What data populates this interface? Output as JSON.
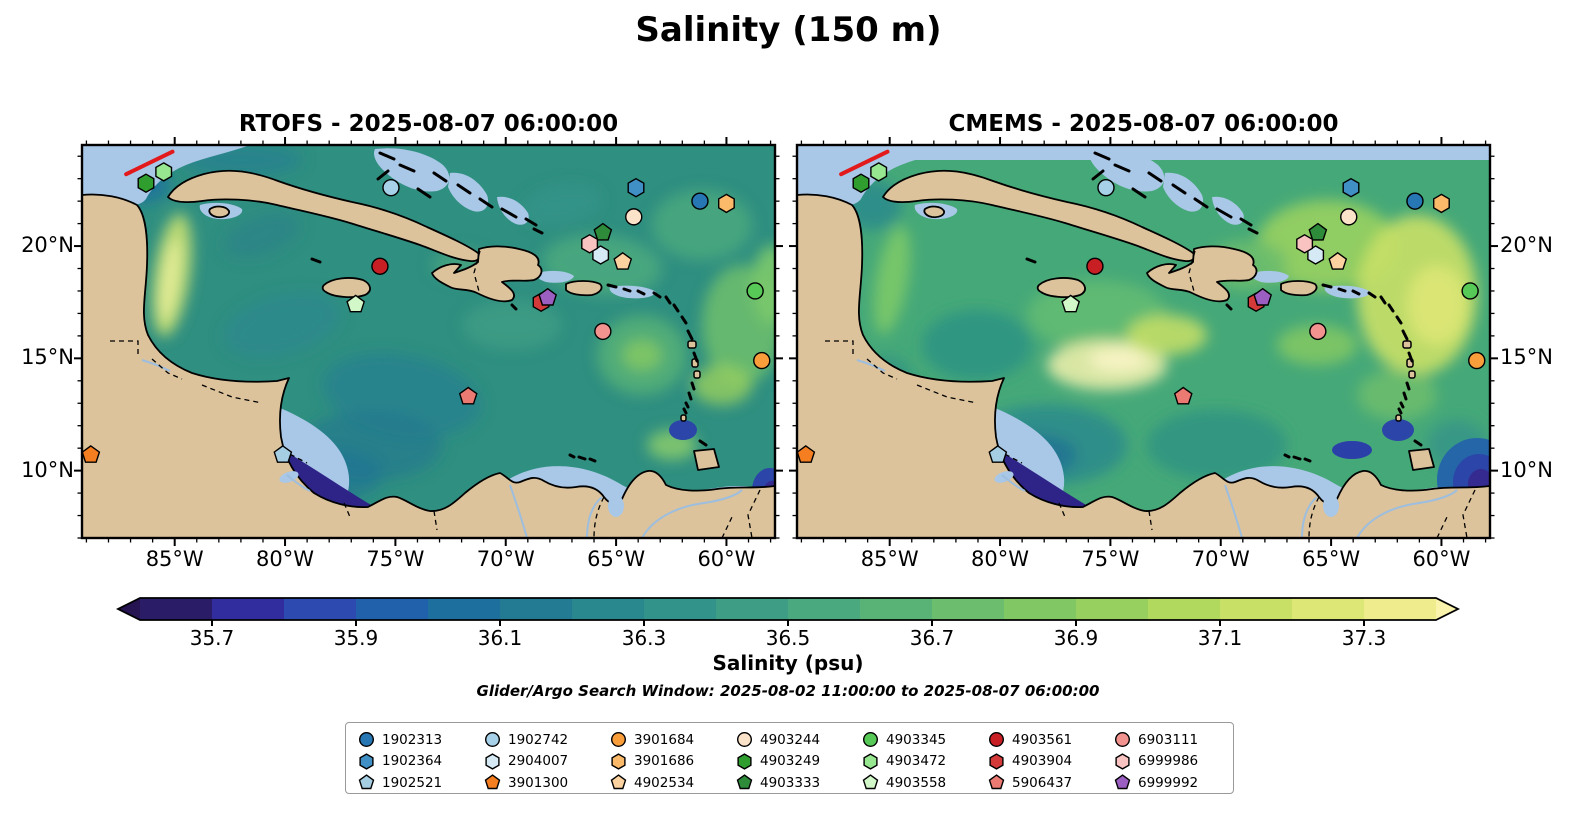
{
  "figure_title": "Salinity (150 m)",
  "panels": [
    {
      "name": "RTOFS",
      "title": "RTOFS - 2025-08-07 06:00:00"
    },
    {
      "name": "CMEMS",
      "title": "CMEMS - 2025-08-07 06:00:00"
    }
  ],
  "axes": {
    "lon_tick_labels": [
      "85°W",
      "80°W",
      "75°W",
      "70°W",
      "65°W",
      "60°W"
    ],
    "lon_tick_values": [
      -85,
      -80,
      -75,
      -70,
      -65,
      -60
    ],
    "lat_tick_labels": [
      "20°N",
      "15°N",
      "10°N"
    ],
    "lat_tick_values": [
      20,
      15,
      10
    ],
    "lon_range": [
      -89.2,
      -57.8
    ],
    "lat_range": [
      7.0,
      24.5
    ],
    "minor_tick_step_deg": 1
  },
  "colorbar": {
    "label": "Salinity (psu)",
    "tick_labels": [
      "35.7",
      "35.9",
      "36.1",
      "36.3",
      "36.5",
      "36.7",
      "36.9",
      "37.1",
      "37.3"
    ],
    "tick_values": [
      35.7,
      35.9,
      36.1,
      36.3,
      36.5,
      36.7,
      36.9,
      37.1,
      37.3
    ],
    "vmin": 35.6,
    "vmax": 37.4,
    "level_step": 0.1,
    "segment_colors": [
      "#2b1c68",
      "#322d9e",
      "#2c4ab0",
      "#2160aa",
      "#1d6f9d",
      "#227b93",
      "#29878e",
      "#32938a",
      "#3d9e85",
      "#4aa97e",
      "#59b376",
      "#6cbd6d",
      "#81c764",
      "#98d05f",
      "#b1d95e",
      "#c9e066",
      "#dde775",
      "#eeec8c"
    ],
    "under_arrow_color": "#251352",
    "over_arrow_color": "#f9f3ab"
  },
  "search_window_note": "Glider/Argo Search Window: 2025-08-02 11:00:00 to 2025-08-07 06:00:00",
  "legend": {
    "rows": 3,
    "columns": 7
  },
  "map_colors": {
    "land": "#dcc39b",
    "coastline": "#000000",
    "shallow_shelf": "#a9c7e6",
    "pacific_deep": "#2e2487",
    "river": "#9dbede",
    "rtofs_ocean_base": "#2f8f80",
    "cmems_ocean_base": "#45a878",
    "track_line": "#e31a1c"
  },
  "chart_data": {
    "type": "map-scatter",
    "variable": "Salinity",
    "depth_m": 150,
    "panel_titles": [
      "RTOFS - 2025-08-07 06:00:00",
      "CMEMS - 2025-08-07 06:00:00"
    ],
    "extent": {
      "lon": [
        -89.2,
        -57.8
      ],
      "lat": [
        7.0,
        24.5
      ]
    },
    "colorbar_range_psu": [
      35.6,
      37.4
    ],
    "platforms": [
      {
        "id": "1902313",
        "marker": "circle",
        "color": "#2777b4",
        "lon": -61.2,
        "lat": 22.0
      },
      {
        "id": "1902364",
        "marker": "hexagon",
        "color": "#4090c5",
        "lon": -64.1,
        "lat": 22.6
      },
      {
        "id": "1902521",
        "marker": "pentagon",
        "color": "#a6cee3",
        "lon": -80.1,
        "lat": 10.7
      },
      {
        "id": "1902742",
        "marker": "circle",
        "color": "#a6d1e8",
        "lon": -75.2,
        "lat": 22.6
      },
      {
        "id": "2904007",
        "marker": "hexagon",
        "color": "#d6eaf6",
        "lon": -65.7,
        "lat": 19.6
      },
      {
        "id": "3901300",
        "marker": "pentagon",
        "color": "#f57e20",
        "lon": -88.8,
        "lat": 10.7
      },
      {
        "id": "3901684",
        "marker": "circle",
        "color": "#fa9e3c",
        "lon": -58.4,
        "lat": 14.9
      },
      {
        "id": "3901686",
        "marker": "hexagon",
        "color": "#fbb96a",
        "lon": -60.0,
        "lat": 21.9
      },
      {
        "id": "4902534",
        "marker": "pentagon",
        "color": "#fcd2a0",
        "lon": -64.7,
        "lat": 19.3
      },
      {
        "id": "4903244",
        "marker": "circle",
        "color": "#fbe3c9",
        "lon": -64.2,
        "lat": 21.3
      },
      {
        "id": "4903249",
        "marker": "hexagon",
        "color": "#2f9e2f",
        "lon": -86.3,
        "lat": 22.8
      },
      {
        "id": "4903333",
        "marker": "pentagon",
        "color": "#2e8b3a",
        "lon": -65.6,
        "lat": 20.6
      },
      {
        "id": "4903345",
        "marker": "circle",
        "color": "#57c957",
        "lon": -58.7,
        "lat": 18.0
      },
      {
        "id": "4903472",
        "marker": "hexagon",
        "color": "#97e690",
        "lon": -85.5,
        "lat": 23.3
      },
      {
        "id": "4903558",
        "marker": "pentagon",
        "color": "#d2f7c8",
        "lon": -76.8,
        "lat": 17.4
      },
      {
        "id": "4903561",
        "marker": "circle",
        "color": "#c81f25",
        "lon": -75.7,
        "lat": 19.1
      },
      {
        "id": "4903904",
        "marker": "hexagon",
        "color": "#d43a3a",
        "lon": -68.4,
        "lat": 17.5
      },
      {
        "id": "5906437",
        "marker": "pentagon",
        "color": "#ea7a72",
        "lon": -71.7,
        "lat": 13.3
      },
      {
        "id": "6903111",
        "marker": "circle",
        "color": "#f2938f",
        "lon": -65.6,
        "lat": 16.2
      },
      {
        "id": "6999986",
        "marker": "hexagon",
        "color": "#f8c3c0",
        "lon": -66.2,
        "lat": 20.1
      },
      {
        "id": "6999992",
        "marker": "pentagon",
        "color": "#9a5fc0",
        "lon": -68.1,
        "lat": 17.7
      }
    ],
    "track_line": {
      "color": "#e31a1c",
      "lon": [
        -87.2,
        -85.1
      ],
      "lat": [
        23.2,
        24.2
      ]
    }
  }
}
